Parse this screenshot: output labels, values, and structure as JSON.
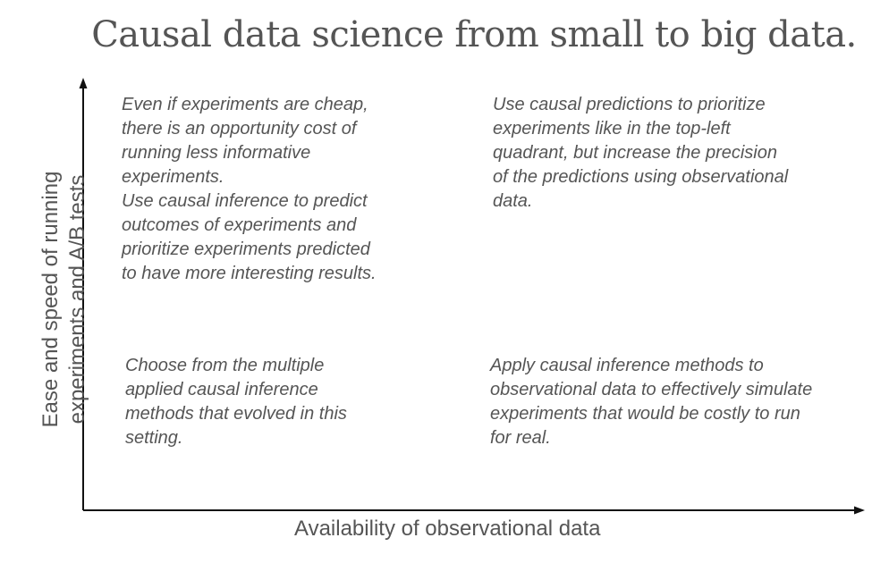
{
  "title": "Causal data science from small to big data.",
  "axes": {
    "x_label": "Availability of observational data",
    "y_label": "Ease and speed of running\nexperiments and A/B tests"
  },
  "quadrants": {
    "top_left": "Even if experiments are cheap,\nthere is an opportunity cost of\nrunning less informative\nexperiments.\nUse causal inference to predict\noutcomes of experiments and\nprioritize experiments predicted\nto have more interesting results.",
    "top_right": "Use causal predictions to prioritize\nexperiments like in the top-left\nquadrant, but increase the precision\nof the predictions using observational\ndata.",
    "bottom_left": "Choose from the multiple\napplied causal inference\nmethods that evolved in this\nsetting.",
    "bottom_right": "Apply causal inference methods to\nobservational data to effectively simulate\nexperiments that would be costly to run\nfor real."
  },
  "colors": {
    "text": "#555555",
    "axis": "#111111"
  }
}
